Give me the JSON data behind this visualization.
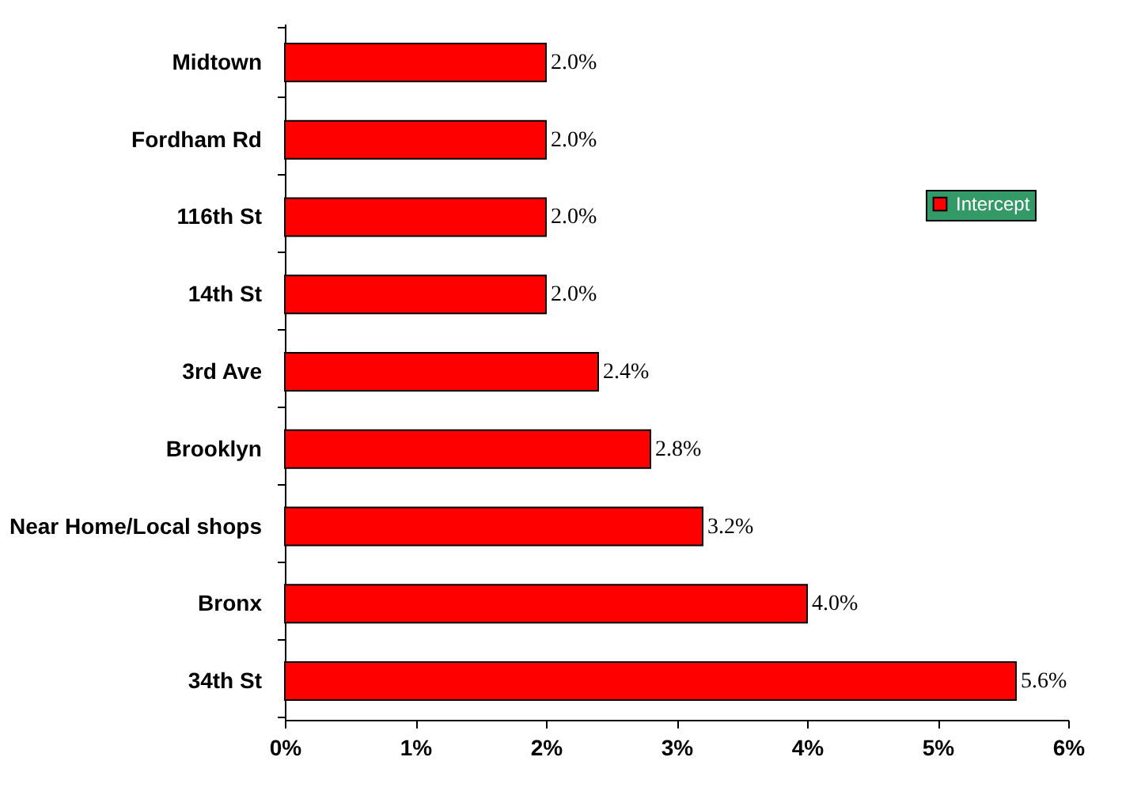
{
  "chart_data": {
    "type": "bar",
    "orientation": "horizontal",
    "categories": [
      "Midtown",
      "Fordham Rd",
      "116th St",
      "14th St",
      "3rd Ave",
      "Brooklyn",
      "Near Home/Local shops",
      "Bronx",
      "34th St"
    ],
    "series": [
      {
        "name": "Intercept",
        "color": "#ff0000",
        "values": [
          2.0,
          2.0,
          2.0,
          2.0,
          2.4,
          2.8,
          3.2,
          4.0,
          5.6
        ],
        "value_labels": [
          "2.0%",
          "2.0%",
          "2.0%",
          "2.0%",
          "2.4%",
          "2.8%",
          "3.2%",
          "4.0%",
          "5.6%"
        ]
      }
    ],
    "xlim": [
      0,
      6
    ],
    "xticks": [
      {
        "value": 0,
        "label": "0%"
      },
      {
        "value": 1,
        "label": "1%"
      },
      {
        "value": 2,
        "label": "2%"
      },
      {
        "value": 3,
        "label": "3%"
      },
      {
        "value": 4,
        "label": "4%"
      },
      {
        "value": 5,
        "label": "5%"
      },
      {
        "value": 6,
        "label": "6%"
      }
    ],
    "grid": false,
    "legend": "right"
  }
}
